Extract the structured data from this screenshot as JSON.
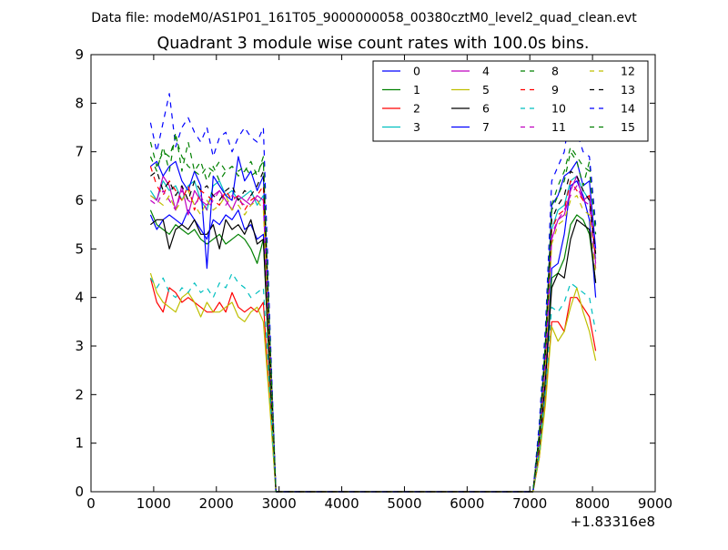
{
  "suptitle": "Data file: modeM0/AS1P01_161T05_9000000058_00380cztM0_level2_quad_clean.evt",
  "chart_data": {
    "type": "line",
    "title": "Quadrant 3 module wise count rates with 100.0s bins.",
    "xlabel": "",
    "ylabel": "",
    "x_offset_label": "+1.83316e8",
    "xlim": [
      0,
      9000
    ],
    "ylim": [
      0,
      9
    ],
    "x_ticks": [
      0,
      1000,
      2000,
      3000,
      4000,
      5000,
      6000,
      7000,
      8000,
      9000
    ],
    "y_ticks": [
      0,
      1,
      2,
      3,
      4,
      5,
      6,
      7,
      8,
      9
    ],
    "x_tick_labels": [
      "0",
      "1000",
      "2000",
      "3000",
      "4000",
      "5000",
      "6000",
      "7000",
      "8000",
      "9000"
    ],
    "y_tick_labels": [
      "0",
      "1",
      "2",
      "3",
      "4",
      "5",
      "6",
      "7",
      "8",
      "9"
    ],
    "grid": false,
    "legend_position": "top-right",
    "legend_columns": 4,
    "x": [
      950,
      1050,
      1150,
      1250,
      1350,
      1450,
      1550,
      1650,
      1750,
      1850,
      1950,
      2050,
      2150,
      2250,
      2350,
      2450,
      2550,
      2650,
      2750,
      2850,
      2950,
      3050,
      7050,
      7150,
      7250,
      7350,
      7450,
      7550,
      7650,
      7750,
      7850,
      7950,
      8050
    ],
    "series": [
      {
        "name": "0",
        "color": "#0000ff",
        "dash": false,
        "values": [
          5.7,
          5.4,
          5.6,
          5.7,
          5.6,
          5.5,
          5.8,
          5.6,
          5.4,
          5.2,
          5.6,
          5.5,
          5.7,
          5.6,
          5.8,
          5.4,
          5.5,
          5.2,
          5.3,
          2.5,
          0,
          0,
          0,
          0.9,
          2.3,
          4.6,
          4.7,
          5.3,
          6.3,
          6.4,
          6.1,
          5.6,
          4.0
        ]
      },
      {
        "name": "1",
        "color": "#008000",
        "dash": false,
        "values": [
          5.8,
          5.5,
          5.4,
          5.3,
          5.5,
          5.4,
          5.3,
          5.4,
          5.2,
          5.1,
          5.2,
          5.3,
          5.1,
          5.2,
          5.3,
          5.2,
          5.0,
          4.7,
          5.2,
          2.4,
          0,
          0,
          0,
          0.8,
          2.2,
          4.4,
          4.5,
          4.8,
          5.5,
          5.7,
          5.6,
          5.3,
          4.3
        ]
      },
      {
        "name": "2",
        "color": "#ff0000",
        "dash": false,
        "values": [
          4.4,
          3.9,
          3.7,
          4.2,
          4.1,
          3.9,
          4.0,
          3.9,
          3.8,
          3.7,
          3.7,
          3.9,
          3.7,
          4.1,
          3.8,
          3.7,
          3.8,
          3.7,
          3.9,
          1.9,
          0,
          0,
          0,
          0.7,
          1.9,
          3.5,
          3.5,
          3.3,
          4.0,
          4.0,
          3.8,
          3.6,
          2.9
        ]
      },
      {
        "name": "3",
        "color": "#00bfbf",
        "dash": false,
        "values": [
          6.2,
          6.0,
          6.4,
          6.2,
          6.3,
          6.0,
          6.3,
          6.4,
          6.0,
          5.8,
          6.3,
          6.4,
          6.1,
          6.2,
          6.0,
          6.1,
          6.2,
          5.9,
          6.1,
          3.0,
          0,
          0,
          0,
          1.1,
          2.8,
          5.4,
          5.8,
          5.9,
          6.4,
          6.5,
          6.2,
          6.0,
          4.8
        ]
      },
      {
        "name": "4",
        "color": "#bf00bf",
        "dash": false,
        "values": [
          6.1,
          6.0,
          6.5,
          6.3,
          5.8,
          6.3,
          5.7,
          6.2,
          6.0,
          5.9,
          6.1,
          6.2,
          6.0,
          5.8,
          6.1,
          6.0,
          5.9,
          6.1,
          6.0,
          3.0,
          0,
          0,
          0,
          1.0,
          2.7,
          5.2,
          5.6,
          5.7,
          6.2,
          6.5,
          6.0,
          6.1,
          4.7
        ]
      },
      {
        "name": "5",
        "color": "#bfbf00",
        "dash": false,
        "values": [
          4.5,
          4.1,
          3.9,
          3.8,
          3.7,
          4.0,
          4.1,
          3.9,
          3.6,
          3.9,
          3.7,
          3.7,
          3.8,
          3.9,
          3.6,
          3.5,
          3.7,
          3.8,
          3.5,
          1.8,
          0,
          0,
          0,
          0.7,
          1.8,
          3.4,
          3.1,
          3.3,
          3.8,
          4.2,
          3.7,
          3.3,
          2.7
        ]
      },
      {
        "name": "6",
        "color": "#000000",
        "dash": false,
        "values": [
          5.5,
          5.6,
          5.6,
          5.0,
          5.4,
          5.5,
          5.4,
          5.6,
          5.3,
          5.3,
          5.5,
          5.0,
          5.6,
          5.4,
          5.5,
          5.3,
          5.6,
          5.1,
          5.2,
          2.6,
          0,
          0,
          0,
          0.9,
          2.3,
          4.2,
          4.5,
          4.4,
          5.2,
          5.6,
          5.5,
          5.4,
          4.3
        ]
      },
      {
        "name": "7",
        "color": "#0000ff",
        "dash": false,
        "values": [
          6.7,
          6.8,
          6.5,
          6.7,
          6.8,
          6.4,
          6.2,
          6.6,
          6.3,
          4.6,
          6.5,
          6.3,
          6.1,
          6.0,
          6.9,
          6.4,
          6.6,
          6.2,
          6.5,
          3.2,
          0,
          0,
          0,
          1.2,
          3.0,
          5.9,
          6.1,
          6.5,
          6.6,
          6.8,
          6.3,
          6.4,
          5.0
        ]
      },
      {
        "name": "8",
        "color": "#008000",
        "dash": true,
        "values": [
          7.2,
          6.7,
          7.0,
          6.9,
          7.3,
          6.9,
          6.7,
          6.6,
          6.5,
          6.7,
          6.6,
          6.8,
          6.6,
          6.7,
          6.6,
          6.7,
          6.5,
          6.6,
          6.8,
          3.3,
          0,
          0,
          0,
          1.2,
          3.1,
          5.8,
          6.1,
          6.4,
          7.0,
          6.8,
          6.3,
          6.8,
          5.3
        ]
      },
      {
        "name": "9",
        "color": "#ff0000",
        "dash": true,
        "values": [
          6.7,
          6.3,
          6.1,
          6.4,
          6.2,
          6.0,
          6.3,
          5.8,
          6.2,
          6.1,
          6.0,
          5.9,
          6.2,
          6.0,
          6.1,
          5.8,
          6.0,
          6.1,
          6.3,
          3.0,
          0,
          0,
          0,
          1.0,
          2.8,
          5.4,
          5.7,
          5.8,
          6.4,
          6.2,
          6.0,
          6.1,
          4.8
        ]
      },
      {
        "name": "10",
        "color": "#00bfbf",
        "dash": true,
        "values": [
          4.4,
          4.2,
          4.4,
          4.1,
          4.0,
          4.2,
          4.1,
          4.3,
          4.1,
          4.2,
          4.0,
          4.3,
          4.2,
          4.5,
          4.3,
          4.2,
          4.0,
          4.1,
          4.2,
          2.1,
          0,
          0,
          0,
          0.8,
          2.1,
          3.8,
          3.7,
          3.9,
          4.3,
          4.2,
          4.1,
          4.0,
          3.3
        ]
      },
      {
        "name": "11",
        "color": "#bf00bf",
        "dash": true,
        "values": [
          6.0,
          5.9,
          6.2,
          6.0,
          5.8,
          6.2,
          6.0,
          5.9,
          6.1,
          5.8,
          6.0,
          6.2,
          5.9,
          6.1,
          6.0,
          5.9,
          6.1,
          6.0,
          5.9,
          3.0,
          0,
          0,
          0,
          1.0,
          2.7,
          5.3,
          5.6,
          5.8,
          6.1,
          6.3,
          6.0,
          5.9,
          4.6
        ]
      },
      {
        "name": "12",
        "color": "#bfbf00",
        "dash": true,
        "values": [
          6.1,
          6.0,
          5.9,
          6.1,
          5.8,
          6.0,
          6.2,
          5.9,
          5.7,
          6.0,
          5.8,
          5.9,
          6.1,
          5.8,
          5.9,
          5.7,
          5.9,
          6.0,
          5.8,
          2.9,
          0,
          0,
          0,
          1.0,
          2.6,
          5.1,
          5.5,
          5.6,
          6.0,
          6.1,
          5.8,
          5.7,
          4.5
        ]
      },
      {
        "name": "13",
        "color": "#000000",
        "dash": true,
        "values": [
          6.5,
          6.6,
          6.2,
          6.4,
          6.1,
          6.3,
          6.0,
          6.4,
          6.2,
          6.3,
          6.1,
          6.0,
          6.2,
          6.3,
          6.0,
          6.2,
          6.1,
          6.3,
          6.6,
          3.1,
          0,
          0,
          0,
          1.1,
          2.9,
          5.6,
          5.9,
          6.1,
          6.6,
          6.5,
          6.2,
          6.0,
          4.9
        ]
      },
      {
        "name": "14",
        "color": "#0000ff",
        "dash": true,
        "values": [
          7.6,
          7.0,
          7.6,
          8.2,
          7.1,
          7.5,
          7.7,
          7.4,
          7.2,
          7.5,
          6.9,
          7.3,
          7.4,
          7.0,
          7.3,
          7.5,
          7.3,
          7.2,
          7.5,
          3.6,
          0,
          0,
          0,
          1.4,
          3.4,
          6.4,
          6.7,
          7.0,
          7.9,
          7.4,
          7.0,
          6.9,
          5.5
        ]
      },
      {
        "name": "15",
        "color": "#008000",
        "dash": true,
        "values": [
          6.9,
          6.6,
          7.1,
          6.6,
          7.4,
          6.6,
          7.2,
          6.6,
          6.8,
          6.4,
          6.7,
          6.4,
          6.6,
          6.7,
          6.5,
          6.6,
          6.8,
          6.5,
          6.9,
          3.3,
          0,
          0,
          0,
          1.2,
          3.1,
          5.9,
          6.3,
          6.6,
          7.1,
          6.9,
          6.7,
          6.6,
          5.4
        ]
      }
    ]
  }
}
